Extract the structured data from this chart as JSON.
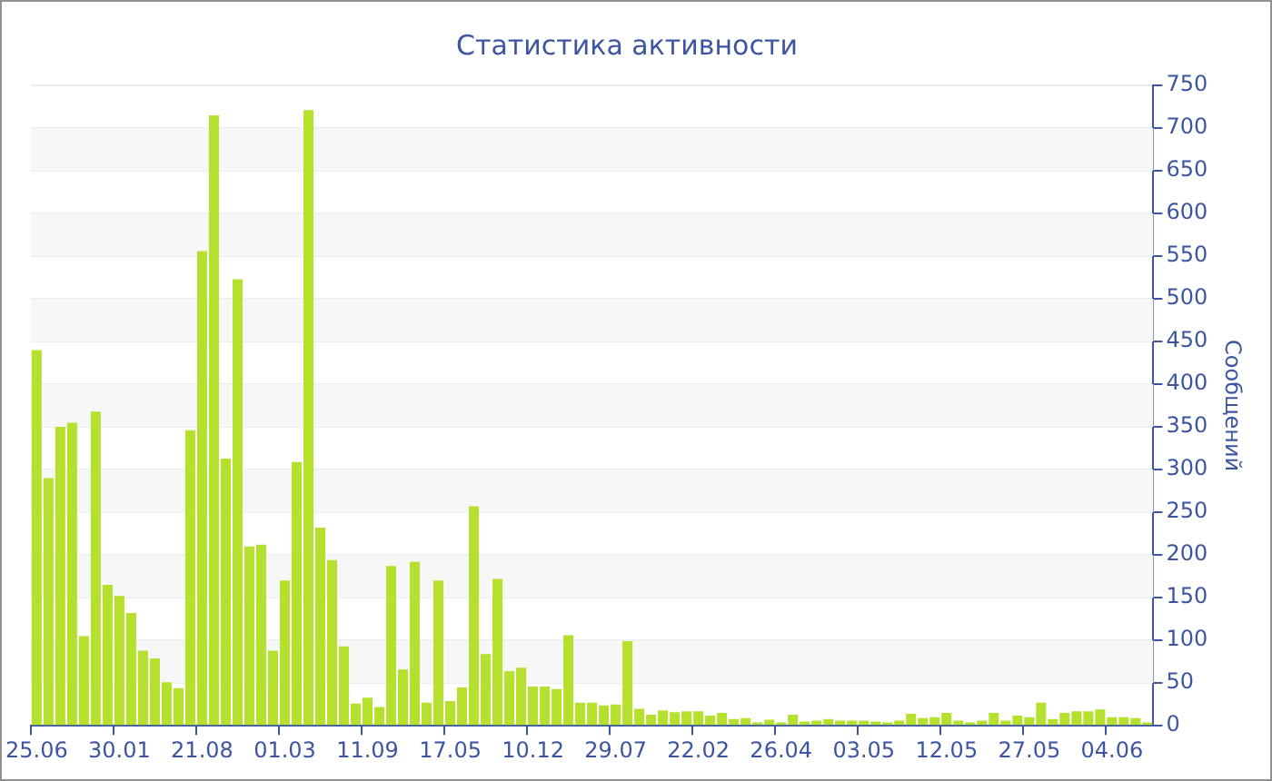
{
  "chart_data": {
    "type": "bar",
    "title": "Статистика активности",
    "ylabel": "Сообщений",
    "categories": [
      "25.06",
      null,
      null,
      null,
      null,
      null,
      null,
      "30.01",
      null,
      null,
      null,
      null,
      null,
      null,
      "21.08",
      null,
      null,
      null,
      null,
      null,
      null,
      "01.03",
      null,
      null,
      null,
      null,
      null,
      null,
      "11.09",
      null,
      null,
      null,
      null,
      null,
      null,
      "17.05",
      null,
      null,
      null,
      null,
      null,
      null,
      "10.12",
      null,
      null,
      null,
      null,
      null,
      null,
      "29.07",
      null,
      null,
      null,
      null,
      null,
      null,
      "22.02",
      null,
      null,
      null,
      null,
      null,
      null,
      "26.04",
      null,
      null,
      null,
      null,
      null,
      null,
      "03.05",
      null,
      null,
      null,
      null,
      null,
      null,
      "12.05",
      null,
      null,
      null,
      null,
      null,
      null,
      "27.05",
      null,
      null,
      null,
      null,
      null,
      null,
      "04.06",
      null,
      null,
      null
    ],
    "values": [
      440,
      290,
      350,
      355,
      105,
      368,
      165,
      152,
      132,
      88,
      79,
      51,
      44,
      346,
      556,
      715,
      313,
      523,
      210,
      212,
      88,
      170,
      309,
      721,
      232,
      194,
      93,
      26,
      33,
      22,
      187,
      66,
      192,
      27,
      170,
      29,
      45,
      257,
      84,
      172,
      64,
      68,
      46,
      46,
      43,
      106,
      27,
      27,
      24,
      25,
      99,
      20,
      13,
      18,
      16,
      17,
      17,
      12,
      15,
      8,
      9,
      4,
      7,
      4,
      13,
      5,
      6,
      8,
      6,
      6,
      6,
      5,
      4,
      6,
      14,
      9,
      10,
      15,
      6,
      4,
      6,
      15,
      6,
      12,
      10,
      27,
      8,
      15,
      17,
      17,
      19,
      10,
      10,
      9,
      4
    ],
    "color": "#b5e02e",
    "ylim": [
      0,
      750
    ],
    "yticks": [
      0,
      50,
      100,
      150,
      200,
      250,
      300,
      350,
      400,
      450,
      500,
      550,
      600,
      650,
      700,
      750
    ],
    "grid": "y",
    "legend": false
  }
}
